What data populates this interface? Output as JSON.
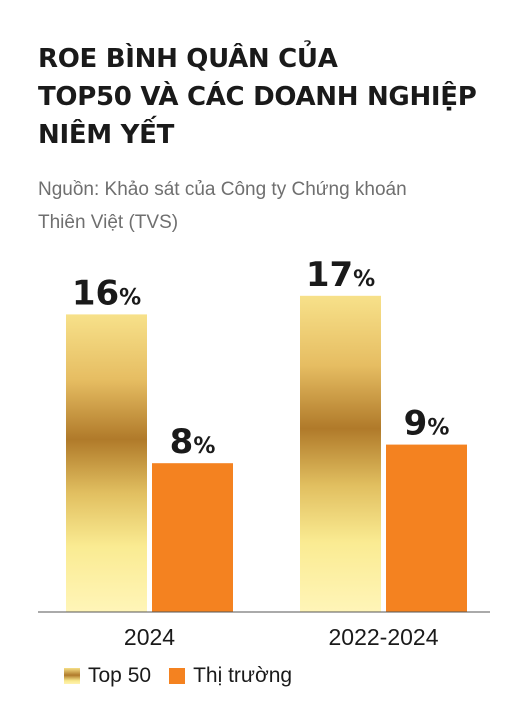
{
  "title_lines": [
    "ROE BÌNH QUÂN CỦA",
    "TOP50 VÀ CÁC DOANH NGHIỆP",
    "NIÊM YẾT"
  ],
  "source_lines": [
    "Nguồn: Khảo sát của Công ty Chứng khoán",
    "Thiên Việt (TVS)"
  ],
  "chart_data": {
    "type": "bar",
    "categories": [
      "2024",
      "2022-2024"
    ],
    "series": [
      {
        "name": "Top 50",
        "values": [
          16,
          17
        ],
        "labels": [
          "16",
          "17"
        ],
        "color": "gold-gradient"
      },
      {
        "name": "Thị trường",
        "values": [
          8,
          9
        ],
        "labels": [
          "8",
          "9"
        ],
        "color": "#F48220"
      }
    ],
    "unit": "%",
    "ylim": [
      0,
      20
    ],
    "grid": false,
    "legend_position": "bottom-left"
  },
  "colors": {
    "orange": "#F48220",
    "gold_light": "#F9E98D",
    "gold_dark": "#B07A2A",
    "title": "#1A1A1A",
    "source": "#6F6F6F"
  }
}
